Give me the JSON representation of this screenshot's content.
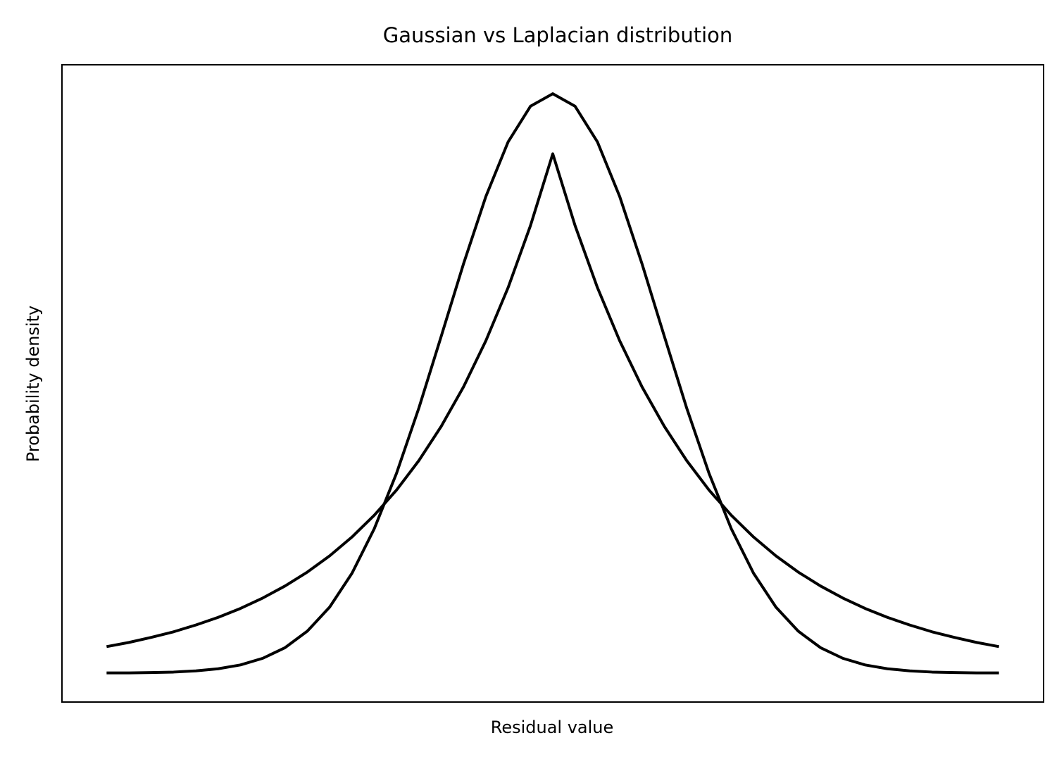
{
  "chart_data": {
    "type": "line",
    "title": "Gaussian vs Laplacian distribution",
    "x_label": "Residual value",
    "y_label": "Probability density",
    "x": [
      -5,
      -4.75,
      -4.5,
      -4.25,
      -4,
      -3.75,
      -3.5,
      -3.25,
      -3,
      -2.75,
      -2.5,
      -2.25,
      -2,
      -1.75,
      -1.5,
      -1.25,
      -1,
      -0.75,
      -0.5,
      -0.25,
      0,
      0.25,
      0.5,
      0.75,
      1,
      1.25,
      1.5,
      1.75,
      2,
      2.25,
      2.5,
      2.75,
      3,
      3.25,
      3.5,
      3.75,
      4,
      4.25,
      4.5,
      4.75,
      5
    ],
    "series": [
      {
        "color": "#000000",
        "values": [
          0.0001,
          0.0001,
          0.0003,
          0.0006,
          0.0013,
          0.0025,
          0.0047,
          0.0085,
          0.0146,
          0.0241,
          0.0379,
          0.0573,
          0.0829,
          0.1148,
          0.1522,
          0.1933,
          0.2349,
          0.2735,
          0.3049,
          0.3253,
          0.3325,
          0.3253,
          0.3049,
          0.2735,
          0.2349,
          0.1933,
          0.1522,
          0.1148,
          0.0829,
          0.0573,
          0.0379,
          0.0241,
          0.0146,
          0.0085,
          0.0047,
          0.0025,
          0.0013,
          0.0006,
          0.0003,
          0.0001,
          0.0001
        ]
      },
      {
        "color": "#000000",
        "values": [
          0.0152,
          0.0176,
          0.0205,
          0.0237,
          0.0276,
          0.032,
          0.0371,
          0.0431,
          0.05,
          0.058,
          0.0673,
          0.0781,
          0.0906,
          0.1051,
          0.122,
          0.1416,
          0.1643,
          0.1907,
          0.2213,
          0.2568,
          0.298,
          0.2568,
          0.2213,
          0.1907,
          0.1643,
          0.1416,
          0.122,
          0.1051,
          0.0906,
          0.0781,
          0.0673,
          0.058,
          0.05,
          0.0431,
          0.0371,
          0.032,
          0.0276,
          0.0237,
          0.0205,
          0.0176,
          0.0152
        ]
      }
    ],
    "xlim": [
      -5.5,
      5.5
    ],
    "ylim": [
      -0.0166,
      0.3491
    ],
    "grid": false
  }
}
